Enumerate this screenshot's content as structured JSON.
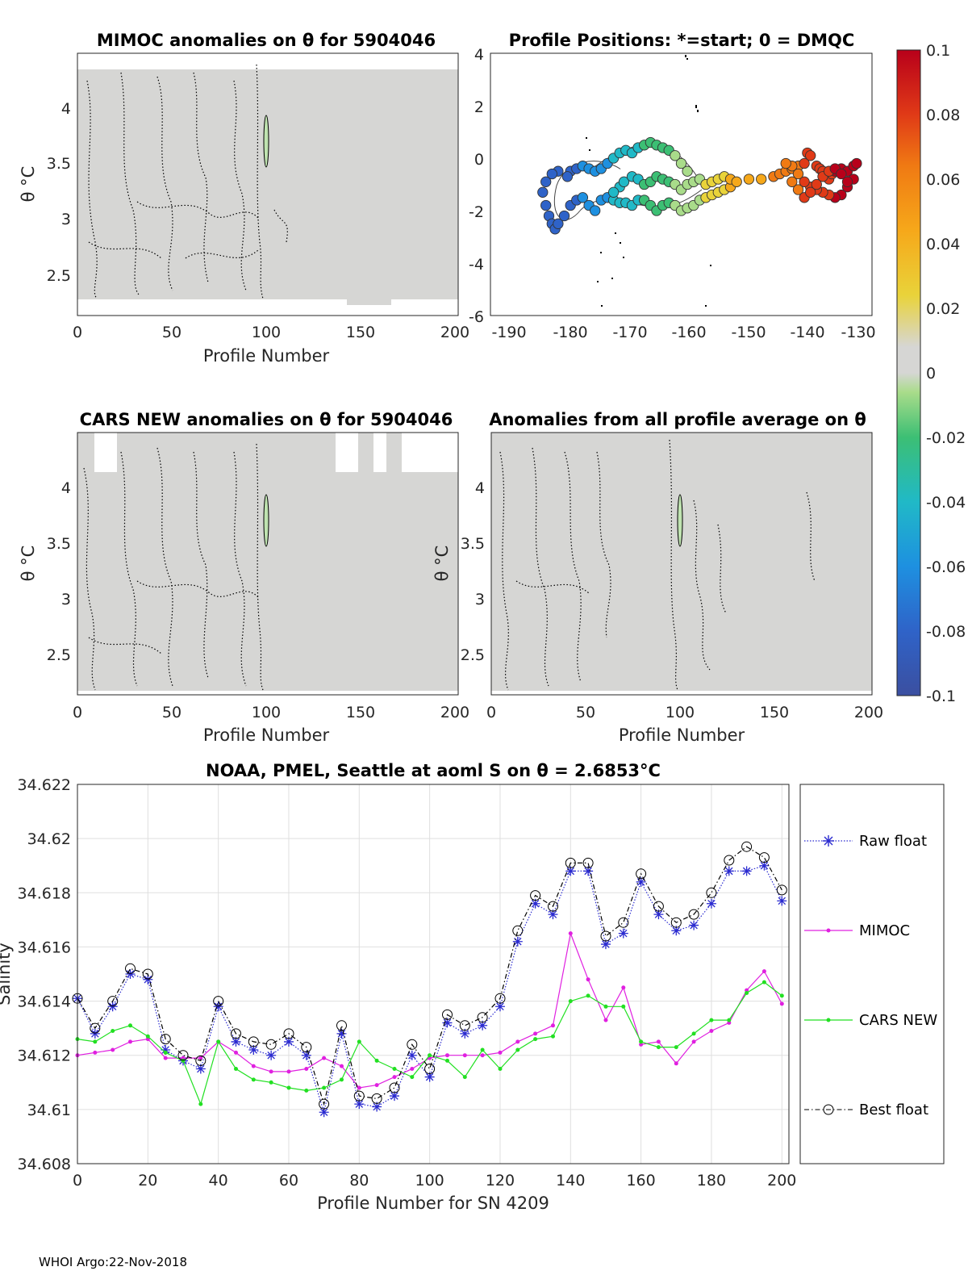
{
  "footer": "WHOI Argo:22-Nov-2018",
  "colors": {
    "field": "#d6d6d4",
    "raw": "#2b2bd0",
    "mimoc": "#e020e0",
    "cars": "#22e022",
    "best": "#000000"
  },
  "colorbar": {
    "ticks": [
      "0.1",
      "0.08",
      "0.06",
      "0.04",
      "0.02",
      "0",
      "-0.02",
      "-0.04",
      "-0.06",
      "-0.08",
      "-0.1"
    ],
    "range": [
      -0.1,
      0.1
    ]
  },
  "panels": {
    "mimoc": {
      "title": "MIMOC anomalies on θ  for 5904046",
      "ylabel": "θ °C",
      "xlabel": "Profile Number",
      "xticks": [
        "0",
        "50",
        "100",
        "150",
        "200"
      ],
      "yticks": [
        "4",
        "3.5",
        "3",
        "2.5"
      ]
    },
    "positions": {
      "title": "Profile Positions: *=start; 0 = DMQC",
      "xticks": [
        "-190",
        "-180",
        "-170",
        "-160",
        "-150",
        "-140",
        "-130"
      ],
      "yticks": [
        "4",
        "2",
        "0",
        "-2",
        "-4",
        "-6"
      ]
    },
    "cars": {
      "title": "CARS NEW anomalies on θ for 5904046",
      "ylabel": "θ °C",
      "xlabel": "Profile Number",
      "xticks": [
        "0",
        "50",
        "100",
        "150",
        "200"
      ],
      "yticks": [
        "4",
        "3.5",
        "3",
        "2.5"
      ]
    },
    "allavg": {
      "title": "Anomalies from all profile average on θ",
      "ylabel": "θ °C",
      "xlabel": "Profile Number",
      "xticks": [
        "0",
        "50",
        "100",
        "150",
        "200"
      ],
      "yticks": [
        "4",
        "3.5",
        "3",
        "2.5"
      ]
    }
  },
  "chart_data": [
    {
      "type": "heatmap",
      "title": "MIMOC anomalies on θ  for 5904046",
      "xlabel": "Profile Number",
      "ylabel": "θ °C",
      "xlim": [
        0,
        200
      ],
      "ylim": [
        2.15,
        4.5
      ],
      "note": "field near-zero anomaly (grey); narrow negative anomaly at profile ~100, θ 3.5–3.9"
    },
    {
      "type": "scatter",
      "title": "Profile Positions: *=start; 0 = DMQC",
      "xlim": [
        -192,
        -130
      ],
      "ylim": [
        -6,
        4
      ],
      "start": {
        "lon": -170.3,
        "lat": -0.3
      },
      "track_lon": [
        -170.3,
        -169,
        -168,
        -167,
        -166,
        -165,
        -164,
        -163,
        -162,
        -161,
        -160,
        -159,
        -158,
        -157,
        -156,
        -155,
        -154,
        -153,
        -152,
        -150,
        -148,
        -146,
        -145,
        -144,
        -143,
        -142,
        -141,
        -140.5,
        -140,
        -139,
        -138.5,
        -138,
        -137.5,
        -137,
        -136.5,
        -136,
        -135,
        -134,
        -133,
        -132.5,
        -133,
        -134,
        -135,
        -136,
        -137,
        -138,
        -139,
        -140,
        -141,
        -142,
        -143,
        -144,
        -143,
        -142,
        -141,
        -140,
        -139,
        -138,
        -137,
        -136,
        -135,
        -134
      ],
      "track_lat": [
        -0.9,
        -0.7,
        -0.8,
        -1.0,
        -0.9,
        -0.7,
        -0.8,
        -0.9,
        -1.0,
        -1.2,
        -1.0,
        -0.9,
        -0.8,
        -1.0,
        -0.9,
        -0.8,
        -0.7,
        -0.8,
        -0.9,
        -0.8,
        -0.8,
        -0.7,
        -0.6,
        -0.5,
        -0.4,
        -0.3,
        -0.2,
        0.2,
        0.1,
        -0.3,
        -0.4,
        -0.5,
        -0.7,
        -0.8,
        -0.6,
        -0.5,
        -0.4,
        -0.5,
        -0.3,
        -0.2,
        -0.8,
        -1.1,
        -1.4,
        -1.5,
        -1.4,
        -1.3,
        -1.2,
        -1.1,
        -0.9,
        -0.6,
        -0.3,
        -0.2,
        -0.9,
        -1.2,
        -1.5,
        -1.3,
        -1.0,
        -0.7,
        -0.5,
        -0.4,
        -0.6,
        -0.9
      ]
    },
    {
      "type": "heatmap",
      "title": "CARS NEW anomalies on θ for 5904046",
      "xlabel": "Profile Number",
      "ylabel": "θ °C",
      "xlim": [
        0,
        200
      ],
      "ylim": [
        2.15,
        4.5
      ]
    },
    {
      "type": "heatmap",
      "title": "Anomalies from all profile average on θ",
      "xlabel": "Profile Number",
      "ylabel": "θ °C",
      "xlim": [
        0,
        200
      ],
      "ylim": [
        2.15,
        4.5
      ]
    },
    {
      "type": "line",
      "title": "NOAA, PMEL, Seattle at aoml S on θ = 2.6853°C",
      "xlabel": "Profile Number for SN 4209",
      "ylabel": "Salinity",
      "xlim": [
        0,
        202
      ],
      "ylim": [
        34.608,
        34.622
      ],
      "xticks": [
        "0",
        "20",
        "40",
        "60",
        "80",
        "100",
        "120",
        "140",
        "160",
        "180",
        "200"
      ],
      "yticks": [
        "34.622",
        "34.62",
        "34.618",
        "34.616",
        "34.614",
        "34.612",
        "34.61",
        "34.608"
      ],
      "x": [
        0,
        5,
        10,
        15,
        20,
        25,
        30,
        35,
        40,
        45,
        50,
        55,
        60,
        65,
        70,
        75,
        80,
        85,
        90,
        95,
        100,
        105,
        110,
        115,
        120,
        125,
        130,
        135,
        140,
        145,
        150,
        155,
        160,
        165,
        170,
        175,
        180,
        185,
        190,
        195,
        200
      ],
      "series": [
        {
          "name": "Raw float",
          "style": "dotted-star",
          "values": [
            34.6141,
            34.6128,
            34.6138,
            34.615,
            34.6148,
            34.6122,
            34.6118,
            34.6115,
            34.6138,
            34.6125,
            34.6122,
            34.612,
            34.6125,
            34.612,
            34.6099,
            34.6128,
            34.6102,
            34.6101,
            34.6105,
            34.612,
            34.6112,
            34.6132,
            34.6128,
            34.6131,
            34.6138,
            34.6162,
            34.6176,
            34.6172,
            34.6188,
            34.6188,
            34.6161,
            34.6165,
            34.6184,
            34.6172,
            34.6166,
            34.6168,
            34.6176,
            34.6188,
            34.6188,
            34.619,
            34.6177
          ]
        },
        {
          "name": "MIMOC",
          "style": "solid-dot",
          "values": [
            34.612,
            34.6121,
            34.6122,
            34.6125,
            34.6126,
            34.6119,
            34.6119,
            34.6119,
            34.6125,
            34.6121,
            34.6116,
            34.6114,
            34.6114,
            34.6115,
            34.6119,
            34.6116,
            34.6108,
            34.6109,
            34.6112,
            34.6115,
            34.6119,
            34.612,
            34.612,
            34.612,
            34.6121,
            34.6125,
            34.6128,
            34.6131,
            34.6165,
            34.6148,
            34.6133,
            34.6145,
            34.6124,
            34.6125,
            34.6117,
            34.6125,
            34.6129,
            34.6132,
            34.6144,
            34.6151,
            34.6139
          ]
        },
        {
          "name": "CARS NEW",
          "style": "solid-dot",
          "values": [
            34.6126,
            34.6125,
            34.6129,
            34.6131,
            34.6127,
            34.6121,
            34.6118,
            34.6102,
            34.6125,
            34.6115,
            34.6111,
            34.611,
            34.6108,
            34.6107,
            34.6108,
            34.6111,
            34.6125,
            34.6118,
            34.6115,
            34.6112,
            34.612,
            34.6118,
            34.6112,
            34.6122,
            34.6115,
            34.6122,
            34.6126,
            34.6127,
            34.614,
            34.6142,
            34.6138,
            34.6138,
            34.6125,
            34.6123,
            34.6123,
            34.6128,
            34.6133,
            34.6133,
            34.6143,
            34.6147,
            34.6142
          ]
        },
        {
          "name": "Best float",
          "style": "dashdot-circle",
          "values": [
            34.6141,
            34.613,
            34.614,
            34.6152,
            34.615,
            34.6126,
            34.612,
            34.6118,
            34.614,
            34.6128,
            34.6125,
            34.6124,
            34.6128,
            34.6123,
            34.6102,
            34.6131,
            34.6105,
            34.6104,
            34.6108,
            34.6124,
            34.6115,
            34.6135,
            34.6131,
            34.6134,
            34.6141,
            34.6166,
            34.6179,
            34.6175,
            34.6191,
            34.6191,
            34.6164,
            34.6169,
            34.6187,
            34.6175,
            34.6169,
            34.6172,
            34.618,
            34.6192,
            34.6197,
            34.6193,
            34.6181
          ]
        }
      ],
      "legend": [
        "Raw float",
        "MIMOC",
        "CARS NEW",
        "Best float"
      ],
      "legend_position": "right"
    }
  ]
}
